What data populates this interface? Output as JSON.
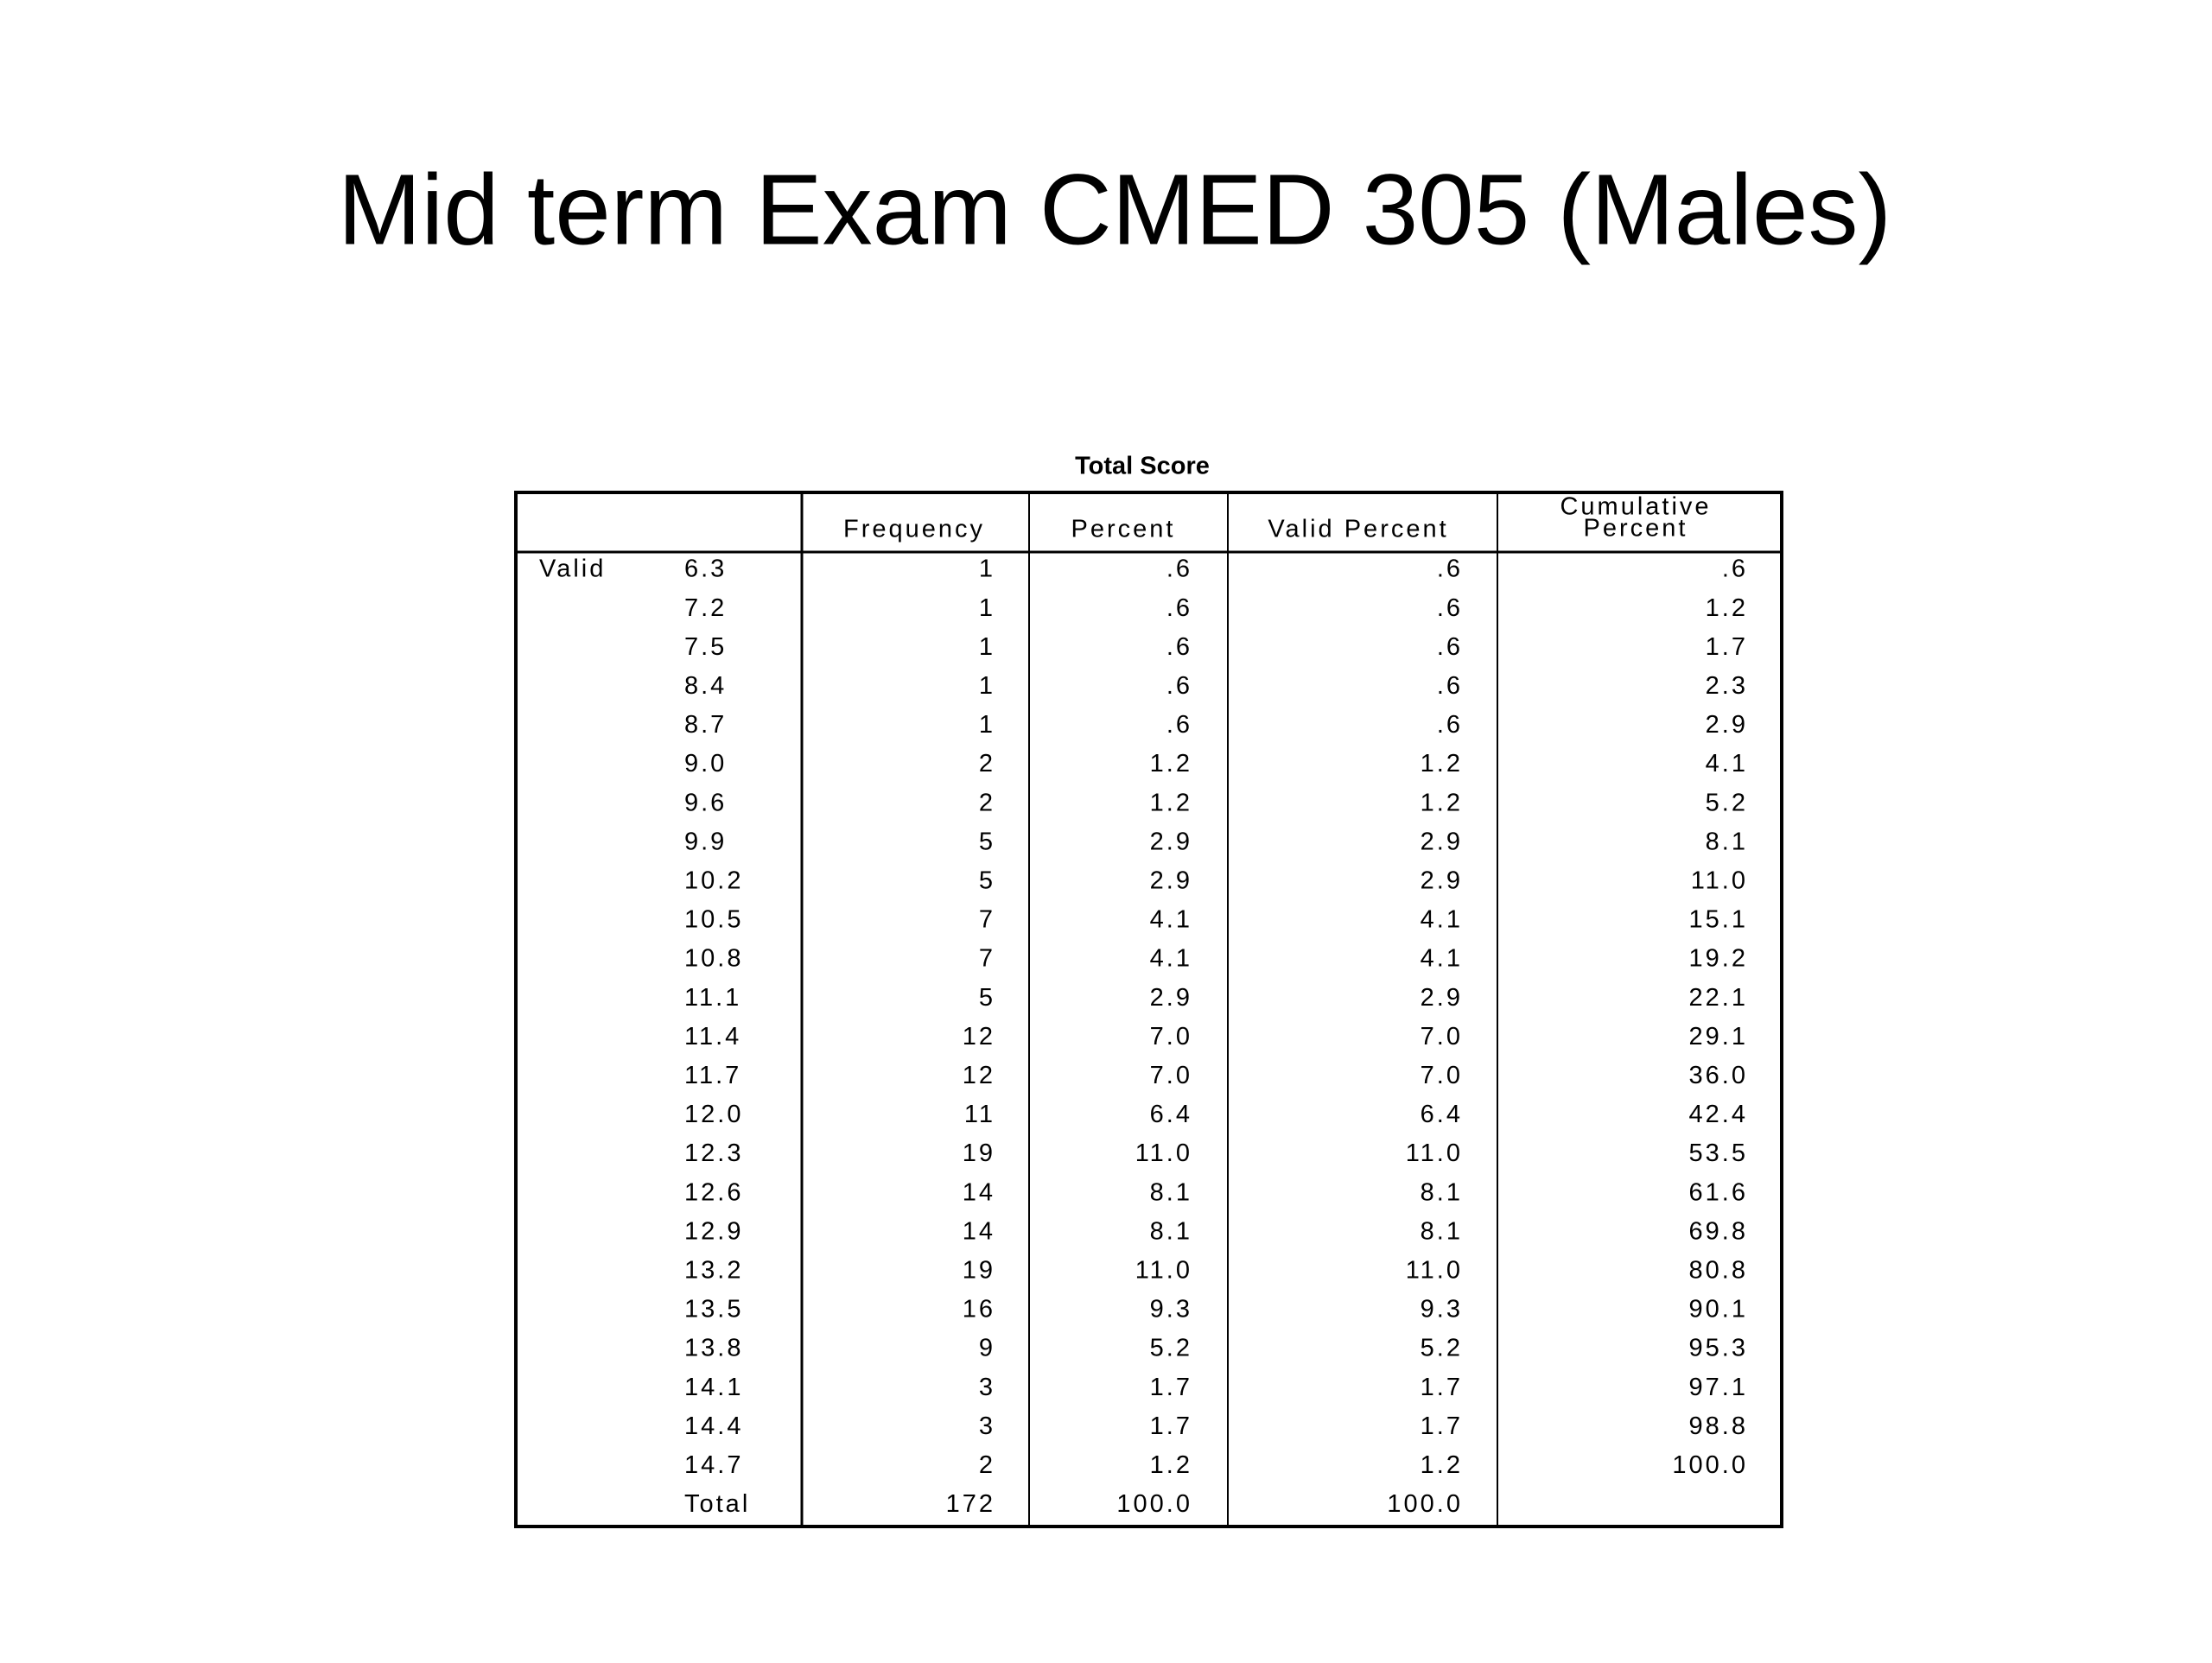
{
  "title": "Mid term Exam CMED 305 (Males)",
  "table": {
    "caption": "Total Score",
    "columns": [
      [
        "Frequency"
      ],
      [
        "Percent"
      ],
      [
        "Valid Percent"
      ],
      [
        "Cumulative",
        "Percent"
      ]
    ],
    "group": "Valid",
    "rows": [
      [
        "6.3",
        "1",
        ".6",
        ".6",
        ".6"
      ],
      [
        "7.2",
        "1",
        ".6",
        ".6",
        "1.2"
      ],
      [
        "7.5",
        "1",
        ".6",
        ".6",
        "1.7"
      ],
      [
        "8.4",
        "1",
        ".6",
        ".6",
        "2.3"
      ],
      [
        "8.7",
        "1",
        ".6",
        ".6",
        "2.9"
      ],
      [
        "9.0",
        "2",
        "1.2",
        "1.2",
        "4.1"
      ],
      [
        "9.6",
        "2",
        "1.2",
        "1.2",
        "5.2"
      ],
      [
        "9.9",
        "5",
        "2.9",
        "2.9",
        "8.1"
      ],
      [
        "10.2",
        "5",
        "2.9",
        "2.9",
        "11.0"
      ],
      [
        "10.5",
        "7",
        "4.1",
        "4.1",
        "15.1"
      ],
      [
        "10.8",
        "7",
        "4.1",
        "4.1",
        "19.2"
      ],
      [
        "11.1",
        "5",
        "2.9",
        "2.9",
        "22.1"
      ],
      [
        "11.4",
        "12",
        "7.0",
        "7.0",
        "29.1"
      ],
      [
        "11.7",
        "12",
        "7.0",
        "7.0",
        "36.0"
      ],
      [
        "12.0",
        "11",
        "6.4",
        "6.4",
        "42.4"
      ],
      [
        "12.3",
        "19",
        "11.0",
        "11.0",
        "53.5"
      ],
      [
        "12.6",
        "14",
        "8.1",
        "8.1",
        "61.6"
      ],
      [
        "12.9",
        "14",
        "8.1",
        "8.1",
        "69.8"
      ],
      [
        "13.2",
        "19",
        "11.0",
        "11.0",
        "80.8"
      ],
      [
        "13.5",
        "16",
        "9.3",
        "9.3",
        "90.1"
      ],
      [
        "13.8",
        "9",
        "5.2",
        "5.2",
        "95.3"
      ],
      [
        "14.1",
        "3",
        "1.7",
        "1.7",
        "97.1"
      ],
      [
        "14.4",
        "3",
        "1.7",
        "1.7",
        "98.8"
      ],
      [
        "14.7",
        "2",
        "1.2",
        "1.2",
        "100.0"
      ]
    ],
    "total": [
      "Total",
      "172",
      "100.0",
      "100.0"
    ]
  }
}
